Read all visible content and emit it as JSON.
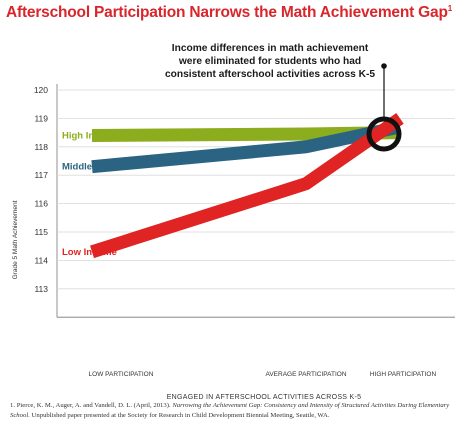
{
  "title": "Afterschool Participation Narrows the Math Achievement Gap",
  "title_note": "1",
  "annotation": [
    "Income differences in math achievement",
    "were eliminated for students who had",
    "consistent afterschool activities across K-5"
  ],
  "footnote": {
    "prefix": "1. Pierce, K. M., Auger, A. and Vandell, D. L. (April, 2013).",
    "title": "Narrowing the Achievement Gap: Consistency and Intensity of Structured Activities During Elementary School.",
    "suffix": "Unpublished paper presented at the Society for Research in Child Development Biennial Meeting, Seattle, WA."
  },
  "colors": {
    "title": "#d8262b",
    "high_income": "#8cae1e",
    "middle_income": "#2b6482",
    "low_income": "#e02323",
    "grid": "#d9d9d9"
  },
  "chart_data": {
    "type": "line",
    "x": [
      "LOW PARTICIPATION",
      "AVERAGE PARTICIPATION",
      "HIGH PARTICIPATION"
    ],
    "xlabel": "ENGAGED IN AFTERSCHOOL ACTIVITIES ACROSS K-5",
    "ylabel": "Grade 5 Math Achievement",
    "ylim": [
      112,
      120
    ],
    "yticks": [
      113,
      114,
      115,
      116,
      117,
      118,
      119,
      120
    ],
    "grid": true,
    "series": [
      {
        "name": "High Income",
        "color": "#8cae1e",
        "values": [
          118.4,
          118.45,
          118.5
        ]
      },
      {
        "name": "Middle Income",
        "color": "#2b6482",
        "values": [
          117.3,
          118.0,
          118.7
        ]
      },
      {
        "name": "Low Income",
        "color": "#e02323",
        "values": [
          114.3,
          116.7,
          119.0
        ]
      }
    ],
    "highlight_x": 2
  }
}
